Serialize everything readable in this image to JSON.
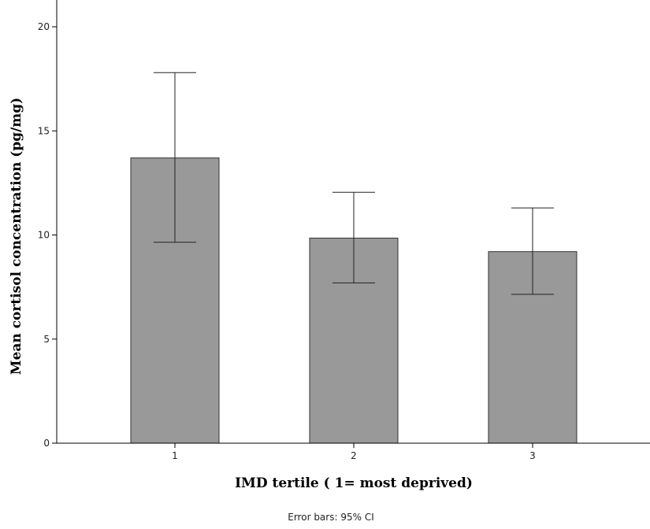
{
  "chart_data": {
    "type": "bar",
    "categories": [
      "1",
      "2",
      "3"
    ],
    "values": [
      13.7,
      9.85,
      9.2
    ],
    "error_bars": {
      "lower": [
        9.65,
        7.7,
        7.15
      ],
      "upper": [
        17.8,
        12.05,
        11.3
      ]
    },
    "xlabel": "IMD tertile ( 1= most deprived)",
    "ylabel": "Mean cortisol concentration (pg/mg)",
    "yticks": [
      0,
      5,
      10,
      15,
      20
    ],
    "ylim": [
      0,
      21.6
    ],
    "footnote": "Error bars: 95% CI",
    "grid": false,
    "colors": {
      "bar_fill": "#999999",
      "bar_stroke": "#333333",
      "axis": "#000000",
      "error_bar": "#222222"
    }
  }
}
